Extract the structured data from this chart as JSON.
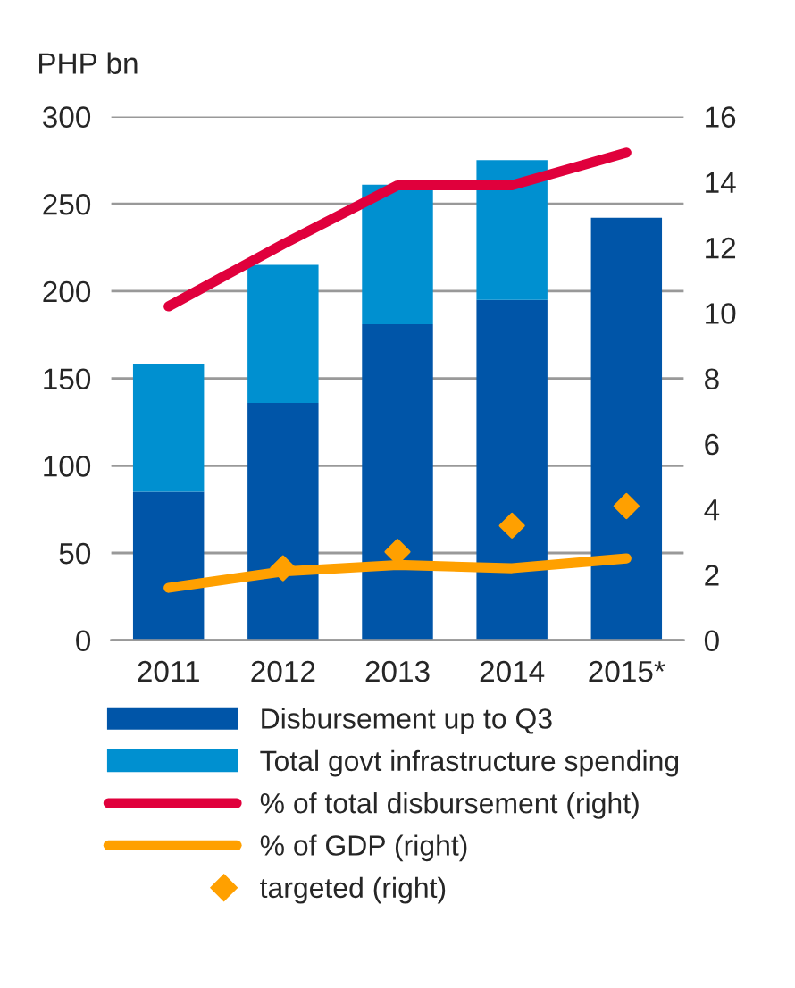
{
  "chart_data": {
    "type": "bar",
    "stacked": true,
    "ylabel": "PHP bn",
    "categories": [
      "2011",
      "2012",
      "2013",
      "2014",
      "2015*"
    ],
    "series": [
      {
        "name": "Disbursement up to Q3",
        "color": "#0055a8",
        "values": [
          85,
          136,
          181,
          195,
          242
        ]
      },
      {
        "name": "Total govt infrastructure spending",
        "color": "#0090d0",
        "values": [
          73,
          79,
          80,
          80,
          null
        ]
      },
      {
        "name": "% of total disbursement (right)",
        "type": "line",
        "axis": "y2",
        "color": "#e0003c",
        "values": [
          10.2,
          12.1,
          13.9,
          13.9,
          14.9
        ]
      },
      {
        "name": "% of GDP (right)",
        "type": "line",
        "axis": "y2",
        "color": "#ffa000",
        "values": [
          1.6,
          2.1,
          2.3,
          2.2,
          2.5
        ]
      },
      {
        "name": "targeted (right)",
        "type": "scatter",
        "axis": "y2",
        "marker": "diamond",
        "color": "#ffa000",
        "values": [
          null,
          2.2,
          2.7,
          3.5,
          4.1
        ]
      }
    ],
    "ylim": [
      0,
      300
    ],
    "yticks": [
      0,
      50,
      100,
      150,
      200,
      250,
      300
    ],
    "y2lim": [
      0,
      16
    ],
    "y2ticks": [
      0,
      2,
      4,
      6,
      8,
      10,
      12,
      14,
      16
    ],
    "grid": "y",
    "legend": "bottom"
  }
}
